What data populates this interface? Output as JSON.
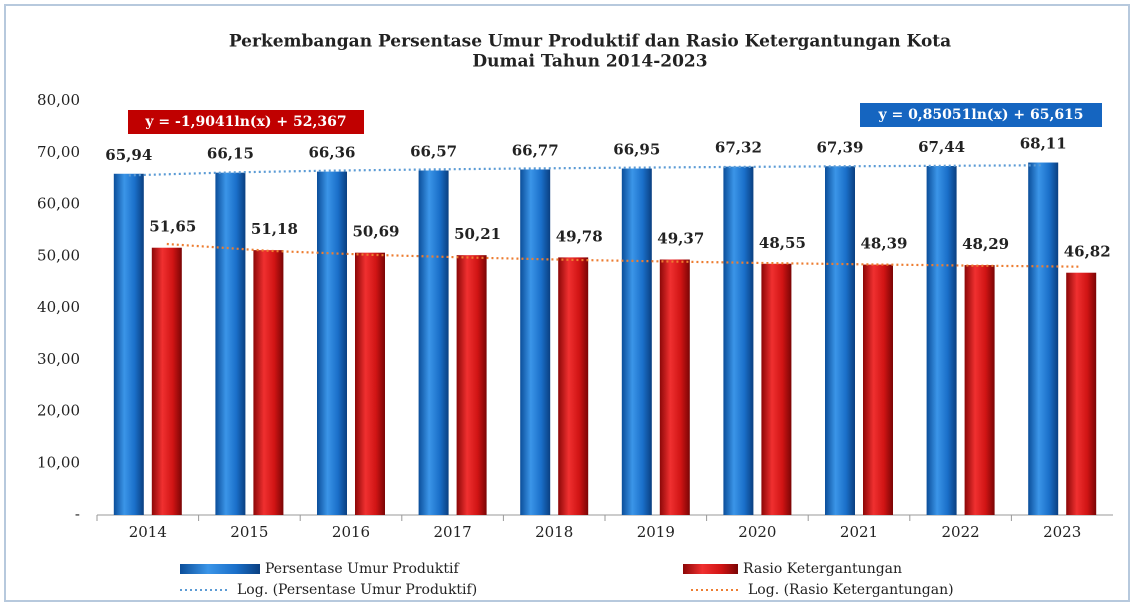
{
  "chart_data": {
    "type": "bar",
    "title": "Perkembangan Persentase Umur Produktif dan Rasio Ketergantungan Kota",
    "subtitle": "Dumai Tahun 2014-2023",
    "categories": [
      "2014",
      "2015",
      "2016",
      "2017",
      "2018",
      "2019",
      "2020",
      "2021",
      "2022",
      "2023"
    ],
    "series": [
      {
        "name": "Persentase Umur Produktif",
        "color": "#1a6fc9",
        "values": [
          65.94,
          66.15,
          66.36,
          66.57,
          66.77,
          66.95,
          67.32,
          67.39,
          67.44,
          68.11
        ],
        "value_labels": [
          "65,94",
          "66,15",
          "66,36",
          "66,57",
          "66,77",
          "66,95",
          "67,32",
          "67,39",
          "67,44",
          "68,11"
        ]
      },
      {
        "name": "Rasio Ketergantungan",
        "color": "#d01414",
        "values": [
          51.65,
          51.18,
          50.69,
          50.21,
          49.78,
          49.37,
          48.55,
          48.39,
          48.29,
          46.82
        ],
        "value_labels": [
          "51,65",
          "51,18",
          "50,69",
          "50,21",
          "49,78",
          "49,37",
          "48,55",
          "48,39",
          "48,29",
          "46,82"
        ]
      }
    ],
    "trendlines": [
      {
        "name": "Log. (Persentase Umur Produktif)",
        "color": "#5b9bd5",
        "values": [
          65.62,
          66.21,
          66.55,
          66.79,
          66.98,
          67.14,
          67.27,
          67.38,
          67.48,
          67.57
        ],
        "equation": "y = 0,85051ln(x) + 65,615",
        "box_color": "#1565c0"
      },
      {
        "name": "Log. (Rasio Ketergantungan)",
        "color": "#ed7d31",
        "values": [
          52.37,
          51.05,
          50.28,
          49.73,
          49.3,
          48.96,
          48.66,
          48.41,
          48.18,
          47.98
        ],
        "equation": "y = -1,9041ln(x) + 52,367",
        "box_color": "#c00000"
      }
    ],
    "ylim": [
      0,
      80
    ],
    "yticks": [
      {
        "value": 0,
        "label": "-"
      },
      {
        "value": 10,
        "label": "10,00"
      },
      {
        "value": 20,
        "label": "20,00"
      },
      {
        "value": 30,
        "label": "30,00"
      },
      {
        "value": 40,
        "label": "40,00"
      },
      {
        "value": 50,
        "label": "50,00"
      },
      {
        "value": 60,
        "label": "60,00"
      },
      {
        "value": 70,
        "label": "70,00"
      },
      {
        "value": 80,
        "label": "80,00"
      }
    ],
    "grid": false
  }
}
